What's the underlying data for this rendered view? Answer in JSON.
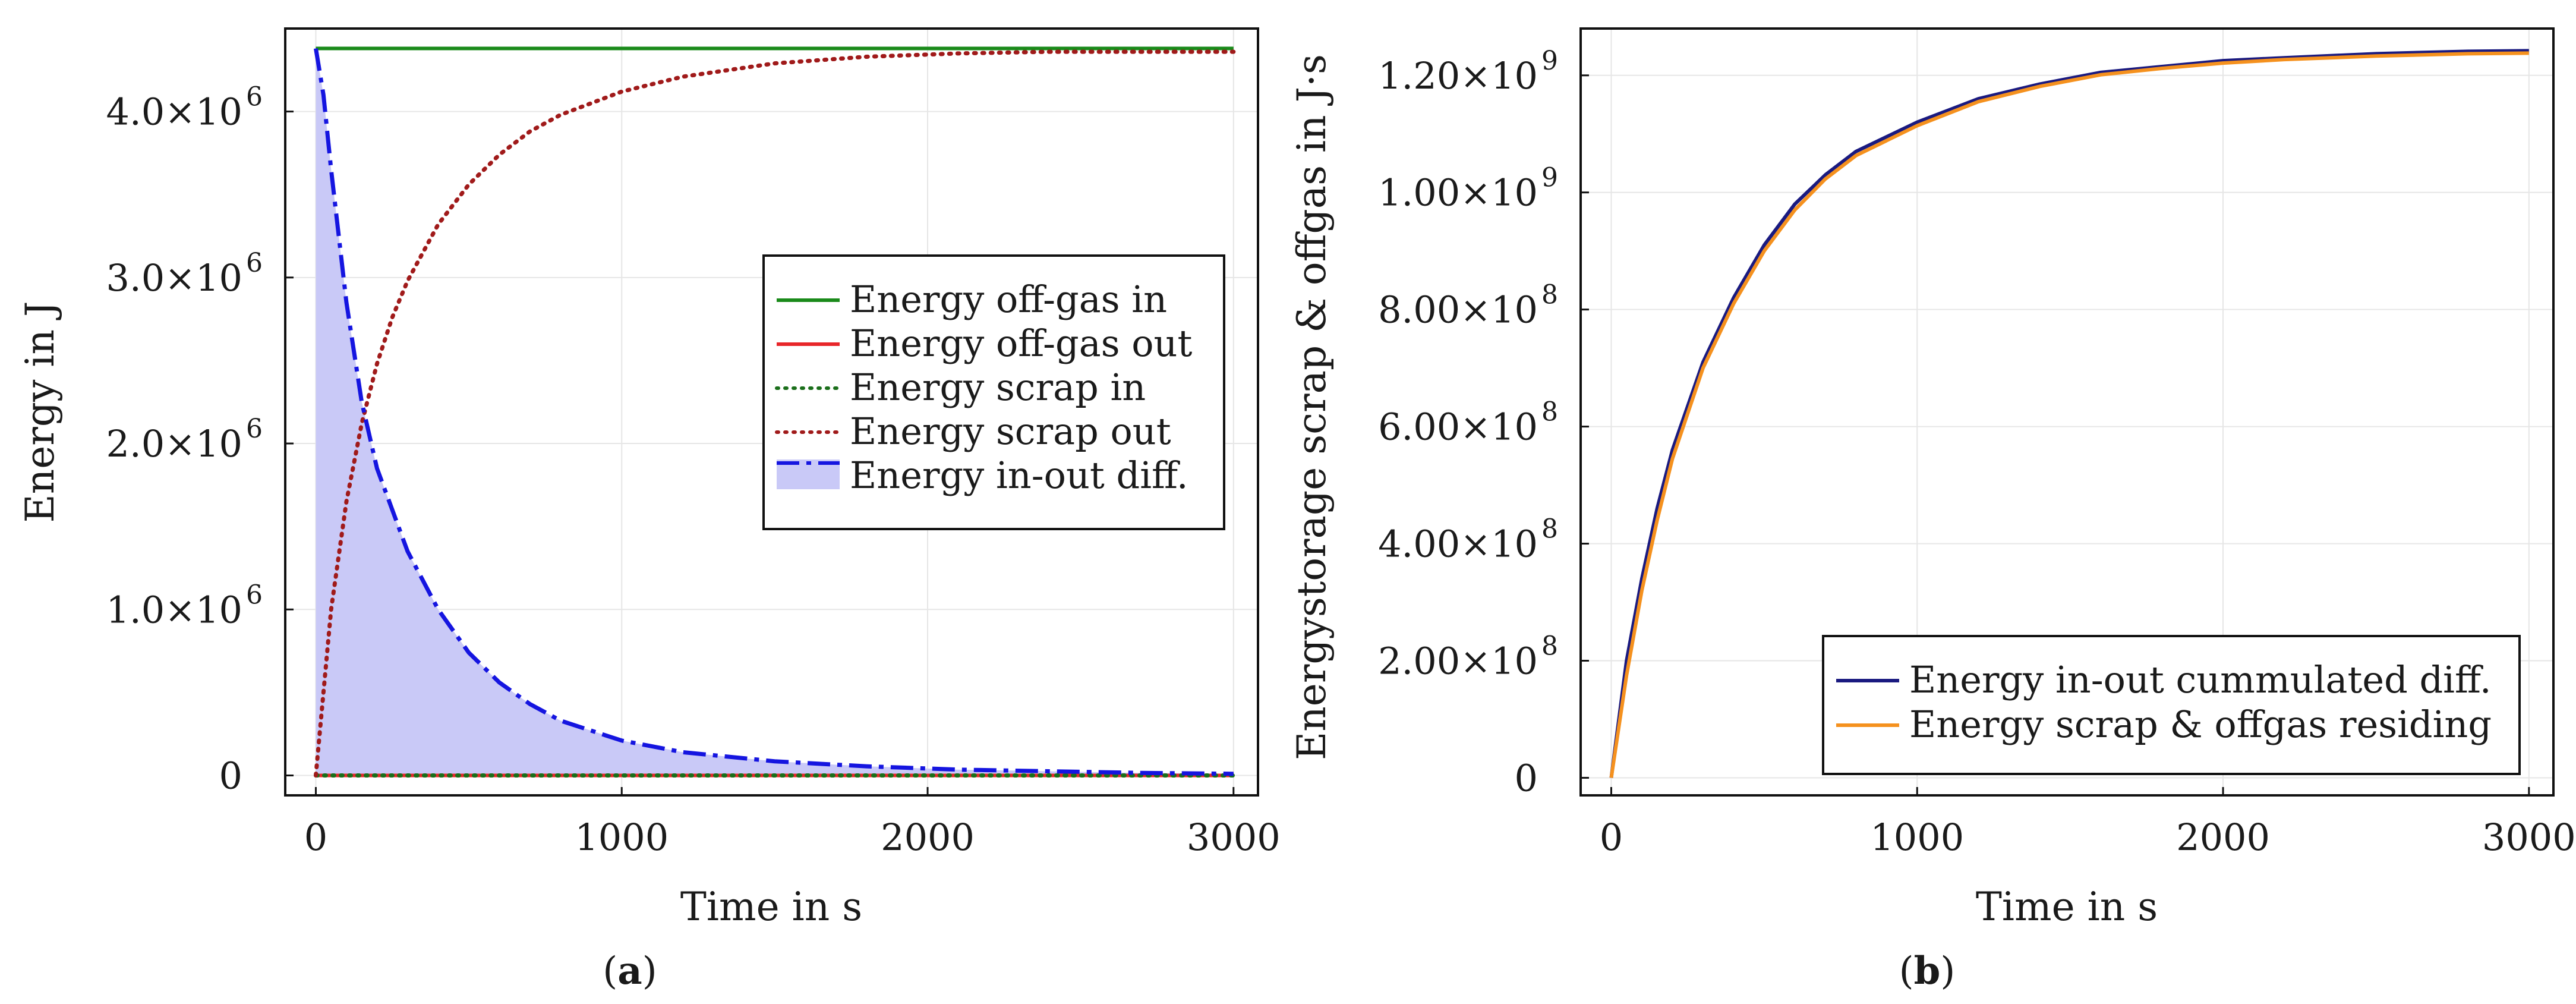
{
  "chart_data": [
    {
      "type": "line",
      "panel": "a",
      "caption": "a",
      "xlabel": "Time in s",
      "ylabel": "Energy in J",
      "xlim": [
        -100,
        3080
      ],
      "ylim": [
        -120000,
        4500000
      ],
      "xticks": [
        0,
        1000,
        2000,
        3000
      ],
      "xtick_labels": [
        "0",
        "1000",
        "2000",
        "3000"
      ],
      "yticks": [
        0,
        1000000,
        2000000,
        3000000,
        4000000
      ],
      "ytick_labels": [
        {
          "base": "0",
          "exp": ""
        },
        {
          "base": "1.0×10",
          "exp": "6"
        },
        {
          "base": "2.0×10",
          "exp": "6"
        },
        {
          "base": "3.0×10",
          "exp": "6"
        },
        {
          "base": "4.0×10",
          "exp": "6"
        }
      ],
      "grid": true,
      "legend_position": "center-right",
      "series": [
        {
          "name": "Energy off-gas in",
          "color": "#1a8a1a",
          "style": "solid",
          "x": [
            0,
            3000
          ],
          "y": [
            4380000,
            4380000
          ]
        },
        {
          "name": "Energy off-gas out",
          "color": "#e8262a",
          "style": "solid",
          "x": [
            0,
            3000
          ],
          "y": [
            0,
            0
          ]
        },
        {
          "name": "Energy scrap in",
          "color": "#1a6e1a",
          "style": "dotted",
          "x": [
            0,
            3000
          ],
          "y": [
            0,
            0
          ]
        },
        {
          "name": "Energy scrap out",
          "color": "#a01a1a",
          "style": "dotted",
          "x": [
            0,
            50,
            100,
            150,
            200,
            250,
            300,
            400,
            500,
            600,
            700,
            800,
            1000,
            1200,
            1500,
            1800,
            2100,
            2400,
            2700,
            3000
          ],
          "y": [
            0,
            1000000,
            1650000,
            2120000,
            2480000,
            2760000,
            2980000,
            3320000,
            3560000,
            3740000,
            3880000,
            3980000,
            4120000,
            4210000,
            4290000,
            4330000,
            4350000,
            4360000,
            4360000,
            4360000
          ]
        },
        {
          "name": "Energy in-out diff.",
          "color": "#1515e0",
          "style": "dashdot",
          "fill": "#c9c9f7",
          "x": [
            0,
            25,
            50,
            100,
            150,
            200,
            300,
            400,
            500,
            600,
            700,
            800,
            1000,
            1200,
            1500,
            1800,
            2100,
            2400,
            2700,
            3000
          ],
          "y": [
            4380000,
            4100000,
            3650000,
            2850000,
            2250000,
            1850000,
            1350000,
            1000000,
            740000,
            560000,
            430000,
            330000,
            210000,
            140000,
            85000,
            55000,
            35000,
            25000,
            15000,
            10000
          ]
        }
      ]
    },
    {
      "type": "line",
      "panel": "b",
      "caption": "b",
      "xlabel": "Time in s",
      "ylabel": "Energystorage scrap & offgas in J·s",
      "xlim": [
        -100,
        3080
      ],
      "ylim": [
        -30000000,
        1280000000
      ],
      "xticks": [
        0,
        1000,
        2000,
        3000
      ],
      "xtick_labels": [
        "0",
        "1000",
        "2000",
        "3000"
      ],
      "yticks": [
        0,
        200000000,
        400000000,
        600000000,
        800000000,
        1000000000,
        1200000000
      ],
      "ytick_labels": [
        {
          "base": "0",
          "exp": ""
        },
        {
          "base": "2.00×10",
          "exp": "8"
        },
        {
          "base": "4.00×10",
          "exp": "8"
        },
        {
          "base": "6.00×10",
          "exp": "8"
        },
        {
          "base": "8.00×10",
          "exp": "8"
        },
        {
          "base": "1.00×10",
          "exp": "9"
        },
        {
          "base": "1.20×10",
          "exp": "9"
        }
      ],
      "grid": true,
      "legend_position": "bottom-right",
      "series": [
        {
          "name": "Energy in-out cummulated diff.",
          "color": "#1a1a80",
          "style": "solid",
          "x": [
            0,
            50,
            100,
            150,
            200,
            300,
            400,
            500,
            600,
            700,
            800,
            1000,
            1200,
            1400,
            1600,
            1800,
            2000,
            2200,
            2500,
            2800,
            3000
          ],
          "y": [
            0,
            200000000,
            340000000,
            460000000,
            560000000,
            710000000,
            820000000,
            910000000,
            980000000,
            1030000000,
            1070000000,
            1120000000,
            1160000000,
            1185000000,
            1205000000,
            1215000000,
            1225000000,
            1230000000,
            1237000000,
            1241000000,
            1242000000
          ]
        },
        {
          "name": "Energy scrap & offgas residing",
          "color": "#f5911e",
          "style": "solid",
          "x": [
            0,
            50,
            100,
            150,
            200,
            300,
            400,
            500,
            600,
            700,
            800,
            1000,
            1200,
            1400,
            1600,
            1800,
            2000,
            2200,
            2500,
            2800,
            3000
          ],
          "y": [
            0,
            175000000,
            320000000,
            440000000,
            545000000,
            700000000,
            810000000,
            900000000,
            970000000,
            1023000000,
            1063000000,
            1114000000,
            1155000000,
            1181000000,
            1201000000,
            1212000000,
            1221000000,
            1227000000,
            1233000000,
            1237000000,
            1238000000
          ]
        }
      ]
    }
  ]
}
